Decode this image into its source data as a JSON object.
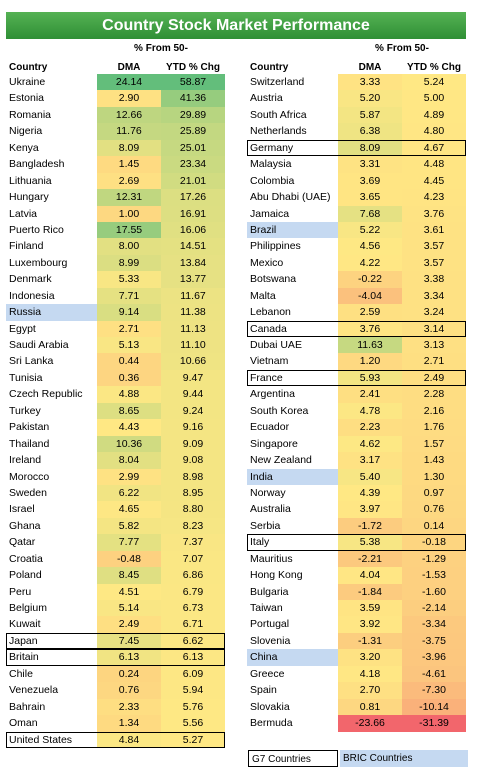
{
  "title": "Country Stock Market Performance",
  "headers": {
    "country": "Country",
    "dma_line1": "% From 50-",
    "dma_line2": "DMA",
    "ytd": "YTD % Chg"
  },
  "legend": {
    "g7": "G7 Countries",
    "bric": "BRIC Countries"
  },
  "colors": {
    "bric_bg": "#c5d9f1",
    "title_bg": "#3fa345"
  },
  "chart_data": {
    "type": "table",
    "title": "Country Stock Market Performance",
    "columns": [
      "Country",
      "% From 50-DMA",
      "YTD % Chg"
    ],
    "left_rows": [
      {
        "country": "Ukraine",
        "dma": 24.14,
        "ytd": 58.87,
        "dma_text": "24.14",
        "ytd_text": "58.87",
        "tag": ""
      },
      {
        "country": "Estonia",
        "dma": 2.9,
        "ytd": 41.36,
        "dma_text": "2.90",
        "ytd_text": "41.36",
        "tag": ""
      },
      {
        "country": "Romania",
        "dma": 12.66,
        "ytd": 29.89,
        "dma_text": "12.66",
        "ytd_text": "29.89",
        "tag": ""
      },
      {
        "country": "Nigeria",
        "dma": 11.76,
        "ytd": 25.89,
        "dma_text": "11.76",
        "ytd_text": "25.89",
        "tag": ""
      },
      {
        "country": "Kenya",
        "dma": 8.09,
        "ytd": 25.01,
        "dma_text": "8.09",
        "ytd_text": "25.01",
        "tag": ""
      },
      {
        "country": "Bangladesh",
        "dma": 1.45,
        "ytd": 23.34,
        "dma_text": "1.45",
        "ytd_text": "23.34",
        "tag": ""
      },
      {
        "country": "Lithuania",
        "dma": 2.69,
        "ytd": 21.01,
        "dma_text": "2.69",
        "ytd_text": "21.01",
        "tag": ""
      },
      {
        "country": "Hungary",
        "dma": 12.31,
        "ytd": 17.26,
        "dma_text": "12.31",
        "ytd_text": "17.26",
        "tag": ""
      },
      {
        "country": "Latvia",
        "dma": 1.0,
        "ytd": 16.91,
        "dma_text": "1.00",
        "ytd_text": "16.91",
        "tag": ""
      },
      {
        "country": "Puerto Rico",
        "dma": 17.55,
        "ytd": 16.06,
        "dma_text": "17.55",
        "ytd_text": "16.06",
        "tag": ""
      },
      {
        "country": "Finland",
        "dma": 8.0,
        "ytd": 14.51,
        "dma_text": "8.00",
        "ytd_text": "14.51",
        "tag": ""
      },
      {
        "country": "Luxembourg",
        "dma": 8.99,
        "ytd": 13.84,
        "dma_text": "8.99",
        "ytd_text": "13.84",
        "tag": ""
      },
      {
        "country": "Denmark",
        "dma": 5.33,
        "ytd": 13.77,
        "dma_text": "5.33",
        "ytd_text": "13.77",
        "tag": ""
      },
      {
        "country": "Indonesia",
        "dma": 7.71,
        "ytd": 11.67,
        "dma_text": "7.71",
        "ytd_text": "11.67",
        "tag": ""
      },
      {
        "country": "Russia",
        "dma": 9.14,
        "ytd": 11.38,
        "dma_text": "9.14",
        "ytd_text": "11.38",
        "tag": "bric"
      },
      {
        "country": "Egypt",
        "dma": 2.71,
        "ytd": 11.13,
        "dma_text": "2.71",
        "ytd_text": "11.13",
        "tag": ""
      },
      {
        "country": "Saudi Arabia",
        "dma": 5.13,
        "ytd": 11.1,
        "dma_text": "5.13",
        "ytd_text": "11.10",
        "tag": ""
      },
      {
        "country": "Sri Lanka",
        "dma": 0.44,
        "ytd": 10.66,
        "dma_text": "0.44",
        "ytd_text": "10.66",
        "tag": ""
      },
      {
        "country": "Tunisia",
        "dma": 0.36,
        "ytd": 9.47,
        "dma_text": "0.36",
        "ytd_text": "9.47",
        "tag": ""
      },
      {
        "country": "Czech Republic",
        "dma": 4.88,
        "ytd": 9.44,
        "dma_text": "4.88",
        "ytd_text": "9.44",
        "tag": ""
      },
      {
        "country": "Turkey",
        "dma": 8.65,
        "ytd": 9.24,
        "dma_text": "8.65",
        "ytd_text": "9.24",
        "tag": ""
      },
      {
        "country": "Pakistan",
        "dma": 4.43,
        "ytd": 9.16,
        "dma_text": "4.43",
        "ytd_text": "9.16",
        "tag": ""
      },
      {
        "country": "Thailand",
        "dma": 10.36,
        "ytd": 9.09,
        "dma_text": "10.36",
        "ytd_text": "9.09",
        "tag": ""
      },
      {
        "country": "Ireland",
        "dma": 8.04,
        "ytd": 9.08,
        "dma_text": "8.04",
        "ytd_text": "9.08",
        "tag": ""
      },
      {
        "country": "Morocco",
        "dma": 2.99,
        "ytd": 8.98,
        "dma_text": "2.99",
        "ytd_text": "8.98",
        "tag": ""
      },
      {
        "country": "Sweden",
        "dma": 6.22,
        "ytd": 8.95,
        "dma_text": "6.22",
        "ytd_text": "8.95",
        "tag": ""
      },
      {
        "country": "Israel",
        "dma": 4.65,
        "ytd": 8.8,
        "dma_text": "4.65",
        "ytd_text": "8.80",
        "tag": ""
      },
      {
        "country": "Ghana",
        "dma": 5.82,
        "ytd": 8.23,
        "dma_text": "5.82",
        "ytd_text": "8.23",
        "tag": ""
      },
      {
        "country": "Qatar",
        "dma": 7.77,
        "ytd": 7.37,
        "dma_text": "7.77",
        "ytd_text": "7.37",
        "tag": ""
      },
      {
        "country": "Croatia",
        "dma": -0.48,
        "ytd": 7.07,
        "dma_text": "-0.48",
        "ytd_text": "7.07",
        "tag": ""
      },
      {
        "country": "Poland",
        "dma": 8.45,
        "ytd": 6.86,
        "dma_text": "8.45",
        "ytd_text": "6.86",
        "tag": ""
      },
      {
        "country": "Peru",
        "dma": 4.51,
        "ytd": 6.79,
        "dma_text": "4.51",
        "ytd_text": "6.79",
        "tag": ""
      },
      {
        "country": "Belgium",
        "dma": 5.14,
        "ytd": 6.73,
        "dma_text": "5.14",
        "ytd_text": "6.73",
        "tag": ""
      },
      {
        "country": "Kuwait",
        "dma": 2.49,
        "ytd": 6.71,
        "dma_text": "2.49",
        "ytd_text": "6.71",
        "tag": ""
      },
      {
        "country": "Japan",
        "dma": 7.45,
        "ytd": 6.62,
        "dma_text": "7.45",
        "ytd_text": "6.62",
        "tag": "g7"
      },
      {
        "country": "Britain",
        "dma": 6.13,
        "ytd": 6.13,
        "dma_text": "6.13",
        "ytd_text": "6.13",
        "tag": "g7"
      },
      {
        "country": "Chile",
        "dma": 0.24,
        "ytd": 6.09,
        "dma_text": "0.24",
        "ytd_text": "6.09",
        "tag": ""
      },
      {
        "country": "Venezuela",
        "dma": 0.76,
        "ytd": 5.94,
        "dma_text": "0.76",
        "ytd_text": "5.94",
        "tag": ""
      },
      {
        "country": "Bahrain",
        "dma": 2.33,
        "ytd": 5.76,
        "dma_text": "2.33",
        "ytd_text": "5.76",
        "tag": ""
      },
      {
        "country": "Oman",
        "dma": 1.34,
        "ytd": 5.56,
        "dma_text": "1.34",
        "ytd_text": "5.56",
        "tag": ""
      },
      {
        "country": "United States",
        "dma": 4.84,
        "ytd": 5.27,
        "dma_text": "4.84",
        "ytd_text": "5.27",
        "tag": "g7"
      }
    ],
    "right_rows": [
      {
        "country": "Switzerland",
        "dma": 3.33,
        "ytd": 5.24,
        "dma_text": "3.33",
        "ytd_text": "5.24",
        "tag": ""
      },
      {
        "country": "Austria",
        "dma": 5.2,
        "ytd": 5.0,
        "dma_text": "5.20",
        "ytd_text": "5.00",
        "tag": ""
      },
      {
        "country": "South Africa",
        "dma": 5.87,
        "ytd": 4.89,
        "dma_text": "5.87",
        "ytd_text": "4.89",
        "tag": ""
      },
      {
        "country": "Netherlands",
        "dma": 6.38,
        "ytd": 4.8,
        "dma_text": "6.38",
        "ytd_text": "4.80",
        "tag": ""
      },
      {
        "country": "Germany",
        "dma": 8.09,
        "ytd": 4.67,
        "dma_text": "8.09",
        "ytd_text": "4.67",
        "tag": "g7"
      },
      {
        "country": "Malaysia",
        "dma": 3.31,
        "ytd": 4.48,
        "dma_text": "3.31",
        "ytd_text": "4.48",
        "tag": ""
      },
      {
        "country": "Colombia",
        "dma": 3.69,
        "ytd": 4.45,
        "dma_text": "3.69",
        "ytd_text": "4.45",
        "tag": ""
      },
      {
        "country": "Abu Dhabi (UAE)",
        "dma": 3.65,
        "ytd": 4.23,
        "dma_text": "3.65",
        "ytd_text": "4.23",
        "tag": ""
      },
      {
        "country": "Jamaica",
        "dma": 7.68,
        "ytd": 3.76,
        "dma_text": "7.68",
        "ytd_text": "3.76",
        "tag": ""
      },
      {
        "country": "Brazil",
        "dma": 5.22,
        "ytd": 3.61,
        "dma_text": "5.22",
        "ytd_text": "3.61",
        "tag": "bric"
      },
      {
        "country": "Philippines",
        "dma": 4.56,
        "ytd": 3.57,
        "dma_text": "4.56",
        "ytd_text": "3.57",
        "tag": ""
      },
      {
        "country": "Mexico",
        "dma": 4.22,
        "ytd": 3.57,
        "dma_text": "4.22",
        "ytd_text": "3.57",
        "tag": ""
      },
      {
        "country": "Botswana",
        "dma": -0.22,
        "ytd": 3.38,
        "dma_text": "-0.22",
        "ytd_text": "3.38",
        "tag": ""
      },
      {
        "country": "Malta",
        "dma": -4.04,
        "ytd": 3.34,
        "dma_text": "-4.04",
        "ytd_text": "3.34",
        "tag": ""
      },
      {
        "country": "Lebanon",
        "dma": 2.59,
        "ytd": 3.24,
        "dma_text": "2.59",
        "ytd_text": "3.24",
        "tag": ""
      },
      {
        "country": "Canada",
        "dma": 3.76,
        "ytd": 3.14,
        "dma_text": "3.76",
        "ytd_text": "3.14",
        "tag": "g7"
      },
      {
        "country": "Dubai UAE",
        "dma": 11.63,
        "ytd": 3.13,
        "dma_text": "11.63",
        "ytd_text": "3.13",
        "tag": ""
      },
      {
        "country": "Vietnam",
        "dma": 1.2,
        "ytd": 2.71,
        "dma_text": "1.20",
        "ytd_text": "2.71",
        "tag": ""
      },
      {
        "country": "France",
        "dma": 5.93,
        "ytd": 2.49,
        "dma_text": "5.93",
        "ytd_text": "2.49",
        "tag": "g7"
      },
      {
        "country": "Argentina",
        "dma": 2.41,
        "ytd": 2.28,
        "dma_text": "2.41",
        "ytd_text": "2.28",
        "tag": ""
      },
      {
        "country": "South Korea",
        "dma": 4.78,
        "ytd": 2.16,
        "dma_text": "4.78",
        "ytd_text": "2.16",
        "tag": ""
      },
      {
        "country": "Ecuador",
        "dma": 2.23,
        "ytd": 1.76,
        "dma_text": "2.23",
        "ytd_text": "1.76",
        "tag": ""
      },
      {
        "country": "Singapore",
        "dma": 4.62,
        "ytd": 1.57,
        "dma_text": "4.62",
        "ytd_text": "1.57",
        "tag": ""
      },
      {
        "country": "New Zealand",
        "dma": 3.17,
        "ytd": 1.43,
        "dma_text": "3.17",
        "ytd_text": "1.43",
        "tag": ""
      },
      {
        "country": "India",
        "dma": 5.4,
        "ytd": 1.3,
        "dma_text": "5.40",
        "ytd_text": "1.30",
        "tag": "bric"
      },
      {
        "country": "Norway",
        "dma": 4.39,
        "ytd": 0.97,
        "dma_text": "4.39",
        "ytd_text": "0.97",
        "tag": ""
      },
      {
        "country": "Australia",
        "dma": 3.97,
        "ytd": 0.76,
        "dma_text": "3.97",
        "ytd_text": "0.76",
        "tag": ""
      },
      {
        "country": "Serbia",
        "dma": -1.72,
        "ytd": 0.14,
        "dma_text": "-1.72",
        "ytd_text": "0.14",
        "tag": ""
      },
      {
        "country": "Italy",
        "dma": 5.38,
        "ytd": -0.18,
        "dma_text": "5.38",
        "ytd_text": "-0.18",
        "tag": "g7"
      },
      {
        "country": "Mauritius",
        "dma": -2.21,
        "ytd": -1.29,
        "dma_text": "-2.21",
        "ytd_text": "-1.29",
        "tag": ""
      },
      {
        "country": "Hong Kong",
        "dma": 4.04,
        "ytd": -1.53,
        "dma_text": "4.04",
        "ytd_text": "-1.53",
        "tag": ""
      },
      {
        "country": "Bulgaria",
        "dma": -1.84,
        "ytd": -1.6,
        "dma_text": "-1.84",
        "ytd_text": "-1.60",
        "tag": ""
      },
      {
        "country": "Taiwan",
        "dma": 3.59,
        "ytd": -2.14,
        "dma_text": "3.59",
        "ytd_text": "-2.14",
        "tag": ""
      },
      {
        "country": "Portugal",
        "dma": 3.92,
        "ytd": -3.34,
        "dma_text": "3.92",
        "ytd_text": "-3.34",
        "tag": ""
      },
      {
        "country": "Slovenia",
        "dma": -1.31,
        "ytd": -3.75,
        "dma_text": "-1.31",
        "ytd_text": "-3.75",
        "tag": ""
      },
      {
        "country": "China",
        "dma": 3.2,
        "ytd": -3.96,
        "dma_text": "3.20",
        "ytd_text": "-3.96",
        "tag": "bric"
      },
      {
        "country": "Greece",
        "dma": 4.18,
        "ytd": -4.61,
        "dma_text": "4.18",
        "ytd_text": "-4.61",
        "tag": ""
      },
      {
        "country": "Spain",
        "dma": 2.7,
        "ytd": -7.3,
        "dma_text": "2.70",
        "ytd_text": "-7.30",
        "tag": ""
      },
      {
        "country": "Slovakia",
        "dma": 0.81,
        "ytd": -10.14,
        "dma_text": "0.81",
        "ytd_text": "-10.14",
        "tag": ""
      },
      {
        "country": "Bermuda",
        "dma": -23.66,
        "ytd": -31.39,
        "dma_text": "-23.66",
        "ytd_text": "-31.39",
        "tag": ""
      }
    ]
  }
}
